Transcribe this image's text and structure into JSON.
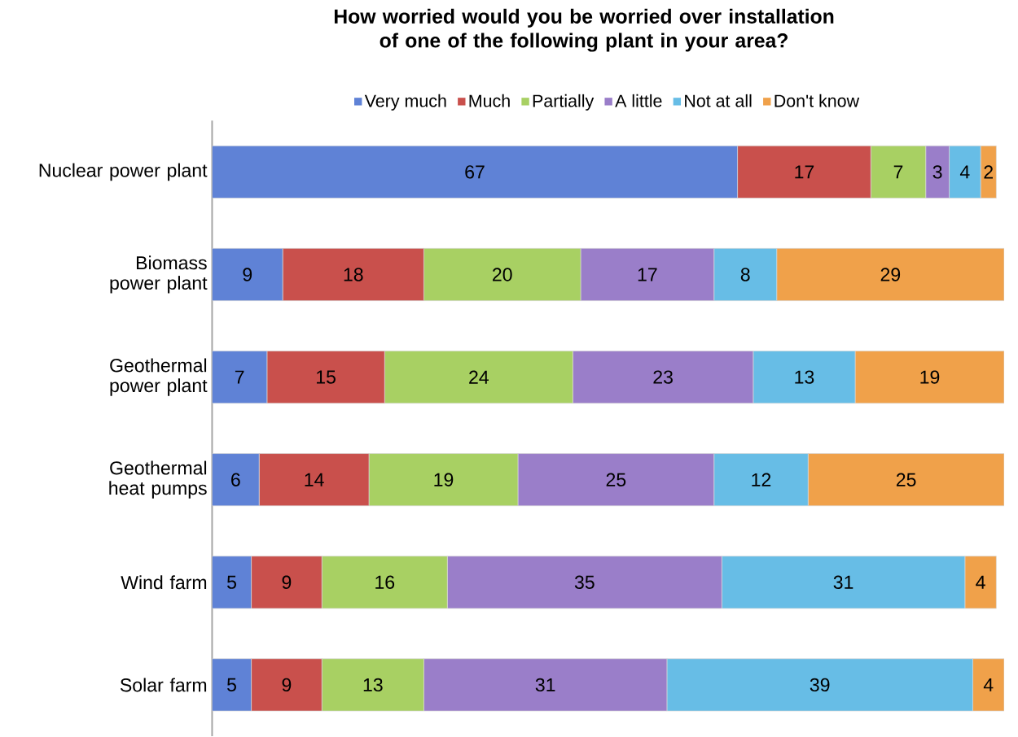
{
  "chart_data": {
    "type": "bar",
    "orientation": "horizontal",
    "stacked": true,
    "data_labels": true,
    "legend": "top",
    "tick_labels": "y",
    "title": "How worried would you be worried over installation of one of the following plant in your area?",
    "categories": [
      "Nuclear power plant",
      "Biomass power plant",
      "Geothermal power plant",
      "Geothermal heat pumps",
      "Wind farm",
      "Solar farm"
    ],
    "series": [
      {
        "name": "Very much",
        "color": "#5f82d6",
        "values": [
          67,
          9,
          7,
          6,
          5,
          5
        ]
      },
      {
        "name": "Much",
        "color": "#c9504c",
        "values": [
          17,
          18,
          15,
          14,
          9,
          9
        ]
      },
      {
        "name": "Partially",
        "color": "#a8d063",
        "values": [
          7,
          20,
          24,
          19,
          16,
          13
        ]
      },
      {
        "name": "A little",
        "color": "#9a7ec9",
        "values": [
          3,
          17,
          23,
          25,
          35,
          31
        ]
      },
      {
        "name": "Not at all",
        "color": "#67bde6",
        "values": [
          4,
          8,
          13,
          12,
          31,
          39
        ]
      },
      {
        "name": "Don't know",
        "color": "#f0a14a",
        "values": [
          2,
          29,
          19,
          25,
          4,
          4
        ]
      }
    ]
  }
}
